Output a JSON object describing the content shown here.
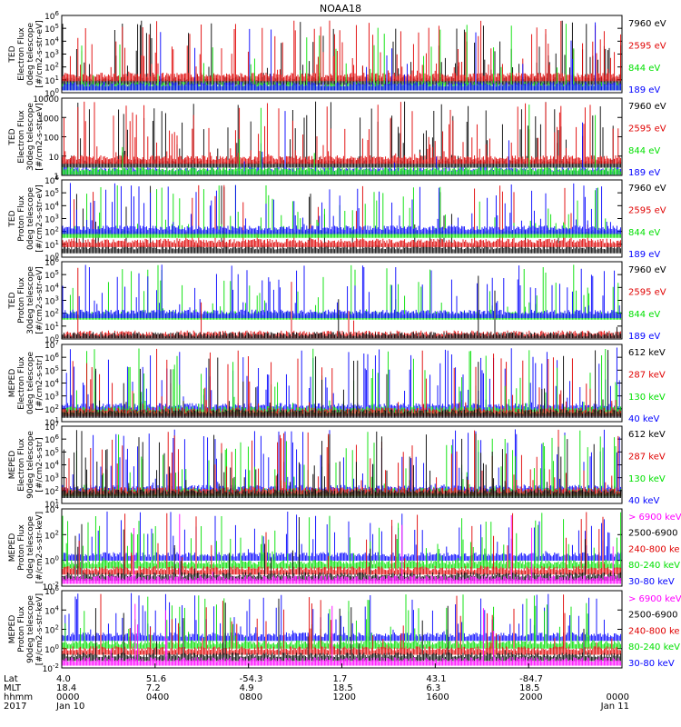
{
  "title": "NOAA18",
  "colors": {
    "black": "#000000",
    "red": "#e00000",
    "green": "#00e000",
    "blue": "#0000ff",
    "magenta": "#ff00ff"
  },
  "chart_data": [
    {
      "type": "line",
      "id": "p1",
      "ylabel": [
        "TED",
        "Electron Flux",
        "0deg telescope",
        "[#/cm2-s-str-eV]"
      ],
      "yscale": "log",
      "ylim_exp": [
        0,
        6
      ],
      "ticks": [
        "10^0",
        "10^1",
        "10^2",
        "10^3",
        "10^4",
        "10^5",
        "10^6"
      ],
      "legend": [
        {
          "text": "7960 eV",
          "color": "black"
        },
        {
          "text": "2595 eV",
          "color": "red"
        },
        {
          "text": "844 eV",
          "color": "green"
        },
        {
          "text": "189 eV",
          "color": "blue"
        }
      ]
    },
    {
      "type": "line",
      "id": "p2",
      "ylabel": [
        "TED",
        "Electron Flux",
        "30deg telescope",
        "[#/cm2-s-str-eV]"
      ],
      "yscale": "log",
      "ticks": [
        "1",
        "10",
        "100",
        "1000",
        "10000"
      ],
      "legend": [
        {
          "text": "7960 eV",
          "color": "black"
        },
        {
          "text": "2595 eV",
          "color": "red"
        },
        {
          "text": "844 eV",
          "color": "green"
        },
        {
          "text": "189 eV",
          "color": "blue"
        }
      ]
    },
    {
      "type": "line",
      "id": "p3",
      "ylabel": [
        "TED",
        "Proton Flux",
        "0deg telescope",
        "[#/cm2-s-str-eV]"
      ],
      "yscale": "log",
      "ticks": [
        "10^0",
        "10^1",
        "10^2",
        "10^3",
        "10^4",
        "10^5",
        "10^6"
      ],
      "legend": [
        {
          "text": "7960 eV",
          "color": "black"
        },
        {
          "text": "2595 eV",
          "color": "red"
        },
        {
          "text": "844 eV",
          "color": "green"
        },
        {
          "text": "189 eV",
          "color": "blue"
        }
      ]
    },
    {
      "type": "line",
      "id": "p4",
      "ylabel": [
        "TED",
        "Proton Flux",
        "30deg telescope",
        "[#/cm2-s-str-eV]"
      ],
      "yscale": "log",
      "ticks": [
        "10^0",
        "10^1",
        "10^2",
        "10^3",
        "10^4",
        "10^5",
        "10^6"
      ],
      "legend": [
        {
          "text": "7960 eV",
          "color": "black"
        },
        {
          "text": "2595 eV",
          "color": "red"
        },
        {
          "text": "844 eV",
          "color": "green"
        },
        {
          "text": "189 eV",
          "color": "blue"
        }
      ]
    },
    {
      "type": "line",
      "id": "p5",
      "ylabel": [
        "MEPED",
        "Electron Flux",
        "0deg telescope",
        "[#/cm2-s-str]"
      ],
      "yscale": "log",
      "ticks": [
        "10^1",
        "10^2",
        "10^3",
        "10^4",
        "10^5",
        "10^6",
        "10^7"
      ],
      "legend": [
        {
          "text": "612 keV",
          "color": "black"
        },
        {
          "text": "287 keV",
          "color": "red"
        },
        {
          "text": "130 keV",
          "color": "green"
        },
        {
          "text": "40 keV",
          "color": "blue"
        }
      ]
    },
    {
      "type": "line",
      "id": "p6",
      "ylabel": [
        "MEPED",
        "Electron Flux",
        "90deg telescope",
        "[#/cm2-s-str]"
      ],
      "yscale": "log",
      "ticks": [
        "10^1",
        "10^2",
        "10^3",
        "10^4",
        "10^5",
        "10^6",
        "10^7"
      ],
      "legend": [
        {
          "text": "612 keV",
          "color": "black"
        },
        {
          "text": "287 keV",
          "color": "red"
        },
        {
          "text": "130 keV",
          "color": "green"
        },
        {
          "text": "40 keV",
          "color": "blue"
        }
      ]
    },
    {
      "type": "line",
      "id": "p7",
      "ylabel": [
        "MEPED",
        "Proton Flux",
        "0deg telescope",
        "[#/cm2-s-str-keV]"
      ],
      "yscale": "log",
      "ticks": [
        "10^-2",
        "10^0",
        "10^2",
        "10^4"
      ],
      "legend": [
        {
          "text": "> 6900 keV",
          "color": "magenta"
        },
        {
          "text": "2500-6900",
          "color": "black"
        },
        {
          "text": "240-800 ke",
          "color": "red"
        },
        {
          "text": "80-240 keV",
          "color": "green"
        },
        {
          "text": "30-80 keV",
          "color": "blue"
        }
      ]
    },
    {
      "type": "line",
      "id": "p8",
      "ylabel": [
        "MEPED",
        "Proton Flux",
        "90deg telescope",
        "[#/cm2-s-str-keV]"
      ],
      "yscale": "log",
      "ticks": [
        "10^-2",
        "10^0",
        "10^2",
        "10^4",
        "10^6"
      ],
      "legend": [
        {
          "text": "> 6900 keV",
          "color": "magenta"
        },
        {
          "text": "2500-6900",
          "color": "black"
        },
        {
          "text": "240-800 ke",
          "color": "red"
        },
        {
          "text": "80-240 keV",
          "color": "green"
        },
        {
          "text": "30-80 keV",
          "color": "blue"
        }
      ]
    }
  ],
  "x_axis": {
    "row_labels": [
      "Lat",
      "MLT",
      "hhmm",
      "2017"
    ],
    "columns": [
      {
        "hhmm": "0000",
        "lat": "4.0",
        "mlt": "18.4",
        "date": "Jan 10"
      },
      {
        "hhmm": "0400",
        "lat": "51.6",
        "mlt": "7.2",
        "date": ""
      },
      {
        "hhmm": "0800",
        "lat": "-54.3",
        "mlt": "4.9",
        "date": ""
      },
      {
        "hhmm": "1200",
        "lat": "1.7",
        "mlt": "18.5",
        "date": ""
      },
      {
        "hhmm": "1600",
        "lat": "43.1",
        "mlt": "6.3",
        "date": ""
      },
      {
        "hhmm": "2000",
        "lat": "-84.7",
        "mlt": "18.5",
        "date": ""
      },
      {
        "hhmm": "0000",
        "lat": "",
        "mlt": "",
        "date": "Jan 11"
      }
    ]
  }
}
